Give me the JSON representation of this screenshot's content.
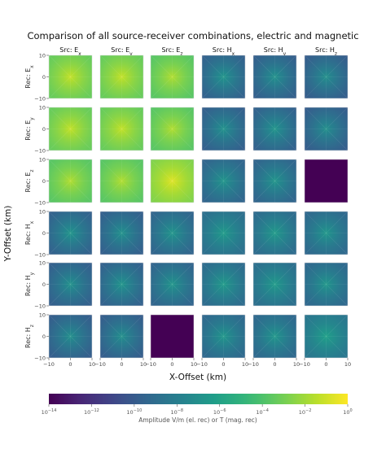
{
  "chart_data": {
    "type": "heatmap",
    "title": "Comparison of all source-receiver combinations, electric and magnetic",
    "xlabel": "X-Offset (km)",
    "ylabel": "Y-Offset (km)",
    "column_titles": [
      {
        "pre": "Src: E",
        "sub": "x"
      },
      {
        "pre": "Src: E",
        "sub": "y"
      },
      {
        "pre": "Src: E",
        "sub": "z"
      },
      {
        "pre": "Src: H",
        "sub": "x"
      },
      {
        "pre": "Src: H",
        "sub": "y"
      },
      {
        "pre": "Src: H",
        "sub": "z"
      }
    ],
    "row_titles": [
      {
        "pre": "Rec: E",
        "sub": "x"
      },
      {
        "pre": "Rec: E",
        "sub": "y"
      },
      {
        "pre": "Rec: E",
        "sub": "z"
      },
      {
        "pre": "Rec: H",
        "sub": "x"
      },
      {
        "pre": "Rec: H",
        "sub": "y"
      },
      {
        "pre": "Rec: H",
        "sub": "z"
      }
    ],
    "x_ticks": [
      "−10",
      "0",
      "10"
    ],
    "y_ticks": [
      "10",
      "0",
      "−10"
    ],
    "xlim": [
      -10,
      10
    ],
    "ylim": [
      -10,
      10
    ],
    "peak_log10_amplitude": [
      [
        -1.2,
        -1.2,
        -1.6,
        -6.6,
        -6.8,
        -6.9
      ],
      [
        -1.2,
        -1.2,
        -1.6,
        -6.8,
        -6.6,
        -6.9
      ],
      [
        -1.6,
        -1.6,
        -0.6,
        -6.6,
        -6.6,
        null
      ],
      [
        -6.6,
        -6.8,
        -6.6,
        -6.3,
        -6.3,
        -6.5
      ],
      [
        -6.8,
        -6.6,
        -6.6,
        -6.3,
        -6.3,
        -6.5
      ],
      [
        -6.9,
        -6.9,
        null,
        -6.5,
        -6.5,
        -6.0
      ]
    ],
    "floor_log10_amplitude": [
      [
        -3.4,
        -3.4,
        -3.8,
        -9.8,
        -9.9,
        -10.0
      ],
      [
        -3.4,
        -3.4,
        -3.8,
        -9.9,
        -9.8,
        -10.0
      ],
      [
        -3.8,
        -3.8,
        -2.8,
        -9.6,
        -9.6,
        -14.0
      ],
      [
        -9.8,
        -9.9,
        -9.6,
        -9.0,
        -9.2,
        -9.4
      ],
      [
        -9.9,
        -9.8,
        -9.6,
        -9.2,
        -9.0,
        -9.4
      ],
      [
        -10.0,
        -10.0,
        -14.0,
        -9.4,
        -9.4,
        -8.6
      ]
    ],
    "colorbar": {
      "label": "Amplitude V/m (el. rec) or T (mag. rec)",
      "range_log10": [
        -14,
        0
      ],
      "ticks": [
        {
          "base": "10",
          "exp": "−14"
        },
        {
          "base": "10",
          "exp": "−12"
        },
        {
          "base": "10",
          "exp": "−10"
        },
        {
          "base": "10",
          "exp": "−8"
        },
        {
          "base": "10",
          "exp": "−6"
        },
        {
          "base": "10",
          "exp": "−4"
        },
        {
          "base": "10",
          "exp": "−2"
        },
        {
          "base": "10",
          "exp": "0"
        }
      ]
    },
    "colormap": "viridis"
  }
}
